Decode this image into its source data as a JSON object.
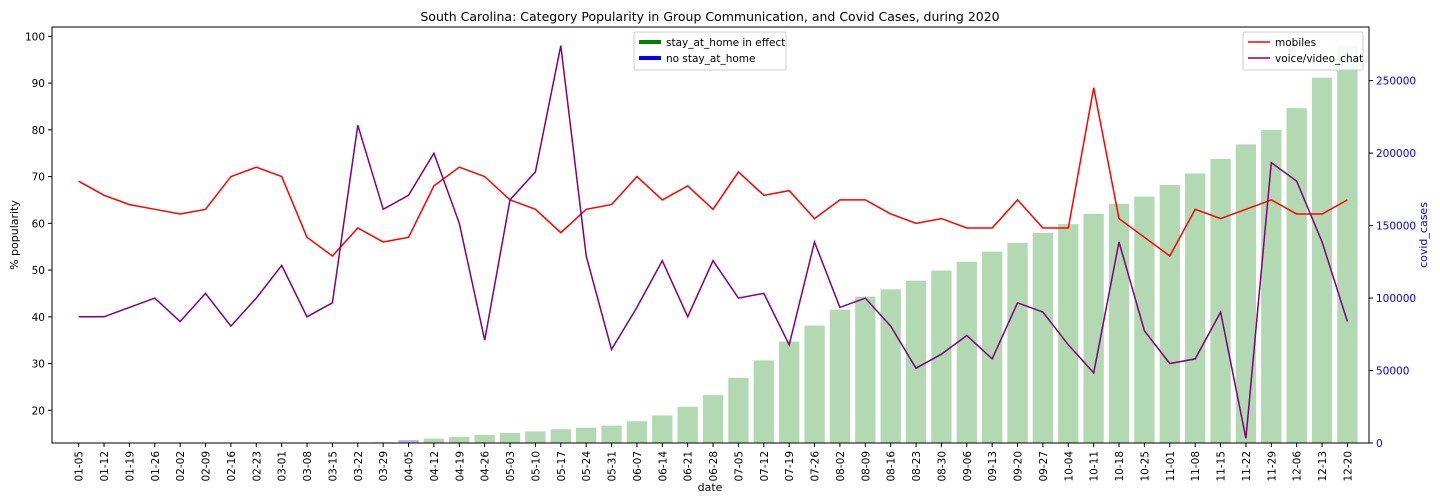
{
  "chart_data": {
    "type": "bar+line",
    "title": "South Carolina: Category Popularity in Group Communication, and Covid Cases, during 2020",
    "xlabel": "date",
    "ylabel_left": "% popularity",
    "ylabel_right": "covid_cases",
    "ylim_left": [
      13,
      102
    ],
    "ylim_right": [
      0,
      287000
    ],
    "yticks_left": [
      20,
      30,
      40,
      50,
      60,
      70,
      80,
      90,
      100
    ],
    "yticks_right": [
      0,
      50000,
      100000,
      150000,
      200000,
      250000
    ],
    "categories": [
      "01-05",
      "01-12",
      "01-19",
      "01-26",
      "02-02",
      "02-09",
      "02-16",
      "02-23",
      "03-01",
      "03-08",
      "03-15",
      "03-22",
      "03-29",
      "04-05",
      "04-12",
      "04-19",
      "04-26",
      "05-03",
      "05-10",
      "05-17",
      "05-24",
      "05-31",
      "06-07",
      "06-14",
      "06-21",
      "06-28",
      "07-05",
      "07-12",
      "07-19",
      "07-26",
      "08-02",
      "08-09",
      "08-16",
      "08-23",
      "08-30",
      "09-06",
      "09-13",
      "09-20",
      "09-27",
      "10-04",
      "10-11",
      "10-18",
      "10-25",
      "11-01",
      "11-08",
      "11-15",
      "11-22",
      "11-29",
      "12-06",
      "12-13",
      "12-20"
    ],
    "series": [
      {
        "name": "mobiles",
        "axis": "left",
        "color": "#ff0000",
        "values": [
          69,
          66,
          64,
          63,
          62,
          63,
          70,
          72,
          70,
          57,
          53,
          59,
          56,
          57,
          68,
          72,
          70,
          65,
          63,
          58,
          63,
          64,
          70,
          65,
          68,
          63,
          71,
          66,
          67,
          61,
          65,
          65,
          62,
          60,
          61,
          59,
          59,
          65,
          59,
          59,
          89,
          61,
          57,
          53,
          63,
          61,
          63,
          65,
          62,
          62,
          65
        ]
      },
      {
        "name": "voice/video_chat",
        "axis": "left",
        "color": "#800080",
        "values": [
          40,
          40,
          42,
          44,
          39,
          45,
          38,
          44,
          51,
          40,
          43,
          81,
          63,
          66,
          75,
          60,
          35,
          65,
          71,
          98,
          53,
          33,
          42,
          52,
          40,
          52,
          44,
          45,
          34,
          56,
          42,
          44,
          38,
          29,
          32,
          36,
          31,
          43,
          41,
          34,
          28,
          56,
          37,
          30,
          31,
          41,
          14,
          73,
          69,
          56,
          39
        ]
      },
      {
        "name": "covid_cases",
        "axis": "right",
        "type": "bar",
        "values": [
          0,
          0,
          0,
          0,
          0,
          0,
          0,
          0,
          0,
          0,
          0,
          0,
          500,
          2000,
          3000,
          4200,
          5500,
          7000,
          8000,
          9500,
          10500,
          12000,
          15000,
          19000,
          25000,
          33000,
          45000,
          57000,
          70000,
          81000,
          92000,
          101000,
          106000,
          112000,
          119000,
          125000,
          132000,
          138000,
          145000,
          151000,
          158000,
          165000,
          170000,
          178000,
          186000,
          196000,
          206000,
          216000,
          231000,
          252000,
          274000
        ],
        "colors": {
          "stay_at_home in effect": "#008000",
          "no stay_at_home": "#0000ff"
        },
        "stay_at_home_weeks": [
          "03-29",
          "04-05"
        ]
      }
    ],
    "legends": [
      {
        "placement": "top-center",
        "items": [
          {
            "label": "stay_at_home in effect",
            "color": "#008000"
          },
          {
            "label": "no stay_at_home",
            "color": "#0000ff"
          }
        ]
      },
      {
        "placement": "top-right",
        "items": [
          {
            "label": "mobiles",
            "color": "#ff0000"
          },
          {
            "label": "voice/video_chat",
            "color": "#800080"
          }
        ]
      }
    ],
    "right_axis_color": "#0000ff",
    "grid": false
  }
}
